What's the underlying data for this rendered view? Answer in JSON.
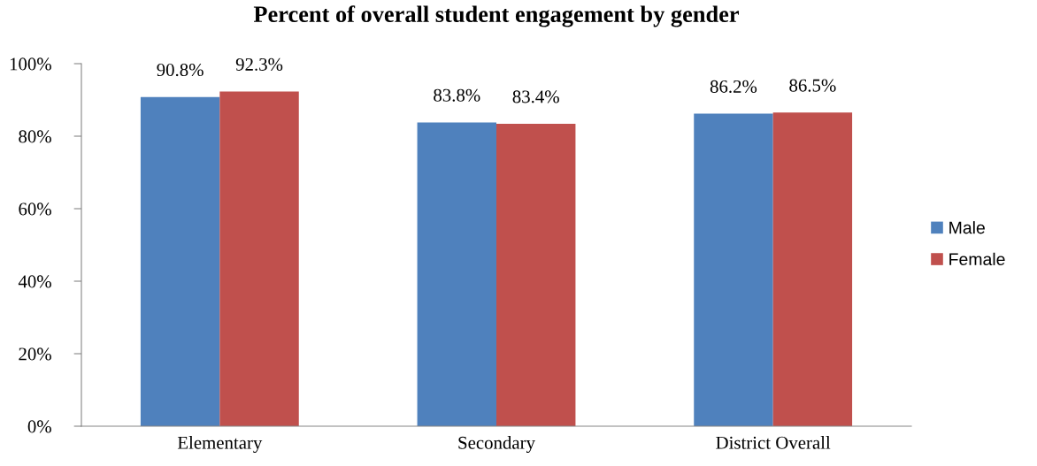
{
  "chart_data": {
    "type": "bar",
    "title": "Percent of overall student engagement by gender",
    "categories": [
      "Elementary",
      "Secondary",
      "District Overall"
    ],
    "series": [
      {
        "name": "Male",
        "color": "#4f81bd",
        "values": [
          90.8,
          83.8,
          86.2
        ],
        "value_labels": [
          "90.8%",
          "83.8%",
          "86.2%"
        ]
      },
      {
        "name": "Female",
        "color": "#c0504d",
        "values": [
          92.3,
          83.4,
          86.5
        ],
        "value_labels": [
          "92.3%",
          "83.4%",
          "86.5%"
        ]
      }
    ],
    "ylim": [
      0,
      100
    ],
    "yticks": [
      {
        "value": 0,
        "label": "0%"
      },
      {
        "value": 20,
        "label": "20%"
      },
      {
        "value": 40,
        "label": "40%"
      },
      {
        "value": 60,
        "label": "60%"
      },
      {
        "value": 80,
        "label": "80%"
      },
      {
        "value": 100,
        "label": "100%"
      }
    ],
    "grid": false,
    "legend": "right"
  }
}
